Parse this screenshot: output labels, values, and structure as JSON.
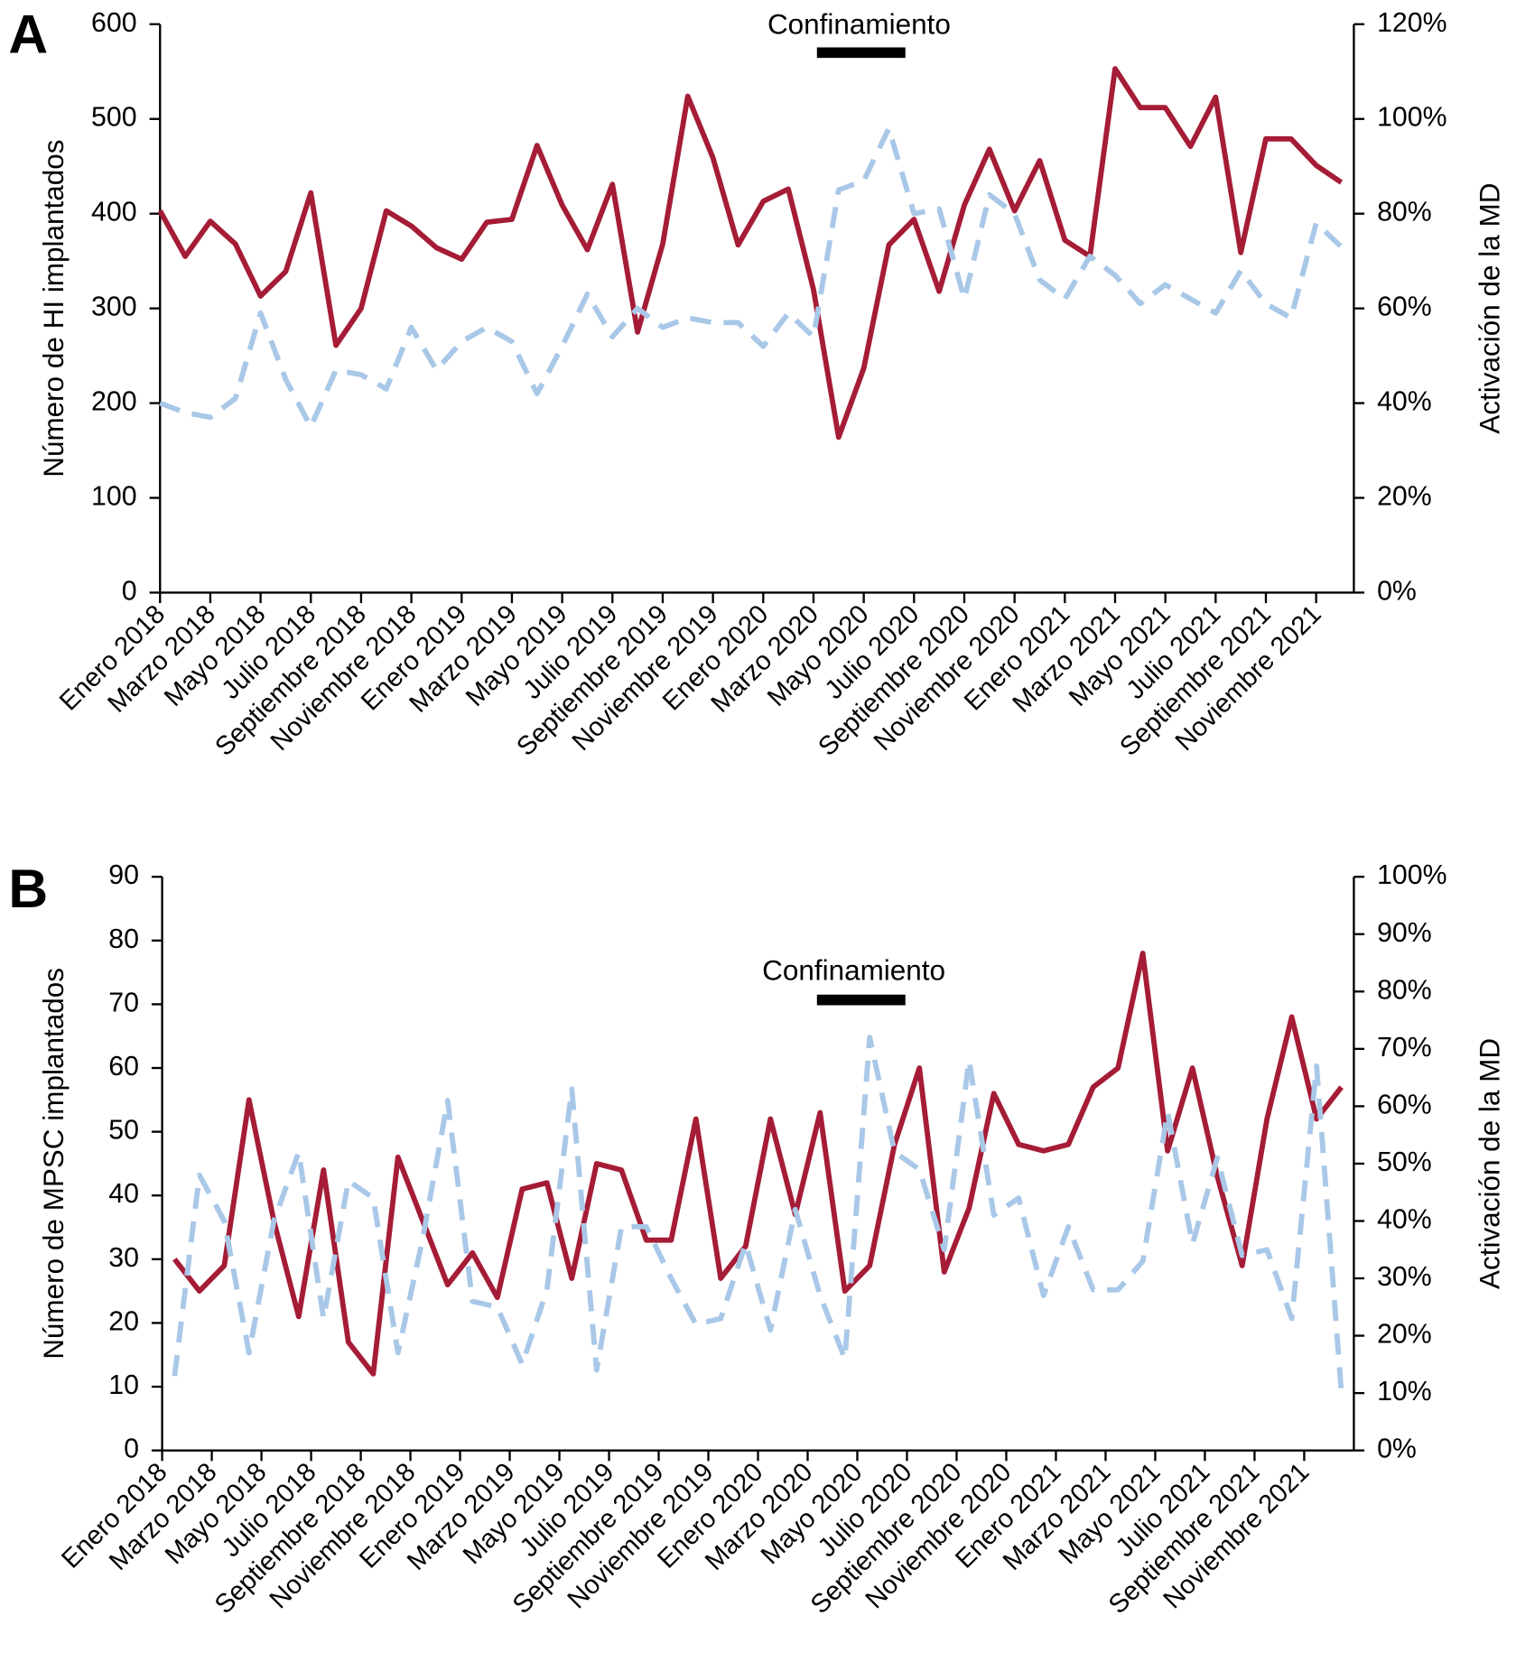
{
  "chart_data": [
    {
      "type": "line",
      "panel_label": "A",
      "annotation": "Confinamiento",
      "ylabel": "Número de HI implantados",
      "y2label": "Activación de la MD",
      "categories": [
        "Enero 2018",
        null,
        "Marzo 2018",
        null,
        "Mayo 2018",
        null,
        "Julio 2018",
        null,
        "Septiembre 2018",
        null,
        "Noviembre 2018",
        null,
        "Enero 2019",
        null,
        "Marzo 2019",
        null,
        "Mayo 2019",
        null,
        "Julio 2019",
        null,
        "Septiembre 2019",
        null,
        "Noviembre 2019",
        null,
        "Enero 2020",
        null,
        "Marzo 2020",
        null,
        "Mayo 2020",
        null,
        "Julio 2020",
        null,
        "Septiembre 2020",
        null,
        "Noviembre 2020",
        null,
        "Enero 2021",
        null,
        "Marzo 2021",
        null,
        "Mayo 2021",
        null,
        "Julio 2021",
        null,
        "Septiembre 2021",
        null,
        "Noviembre 2021",
        null
      ],
      "series": [
        {
          "color": "#a51c36",
          "dashed": false,
          "axis": "y",
          "values": [
            403,
            355,
            392,
            368,
            313,
            339,
            422,
            261,
            300,
            403,
            387,
            364,
            352,
            391,
            394,
            472,
            409,
            362,
            431,
            275,
            368,
            524,
            459,
            367,
            413,
            426,
            320,
            164,
            237,
            367,
            394,
            318,
            409,
            468,
            403,
            456,
            372,
            355,
            553,
            512,
            512,
            471,
            523,
            359,
            479,
            479,
            451,
            433
          ]
        },
        {
          "color": "#a9c8e8",
          "dashed": true,
          "axis": "y2",
          "values": [
            40,
            38,
            37,
            41,
            59,
            45,
            35,
            47,
            46,
            43,
            56,
            47,
            53,
            56,
            53,
            42,
            52,
            63,
            54,
            60,
            56,
            58,
            57,
            57,
            52,
            59,
            54,
            85,
            87,
            98,
            80,
            81,
            62,
            84,
            80,
            66,
            62,
            71,
            67,
            61,
            65,
            62,
            59,
            68,
            61,
            58,
            78,
            73
          ]
        }
      ],
      "ylim": [
        0,
        600
      ],
      "yticks": [
        0,
        100,
        200,
        300,
        400,
        500,
        600
      ],
      "y2lim": [
        0,
        120
      ],
      "y2ticks": [
        {
          "value": 0,
          "label": "0%"
        },
        {
          "value": 20,
          "label": "20%"
        },
        {
          "value": 40,
          "label": "40%"
        },
        {
          "value": 60,
          "label": "60%"
        },
        {
          "value": 80,
          "label": "80%"
        },
        {
          "value": 100,
          "label": "100%"
        },
        {
          "value": 120,
          "label": "120%"
        }
      ]
    },
    {
      "type": "line",
      "panel_label": "B",
      "annotation": "Confinamiento",
      "ylabel": "Número de MPSC implantados",
      "y2label": "Activación de la MD",
      "categories": [
        "Enero 2018",
        null,
        "Marzo 2018",
        null,
        "Mayo 2018",
        null,
        "Julio 2018",
        null,
        "Septiembre 2018",
        null,
        "Noviembre 2018",
        null,
        "Enero 2019",
        null,
        "Marzo 2019",
        null,
        "Mayo 2019",
        null,
        "Julio 2019",
        null,
        "Septiembre 2019",
        null,
        "Noviembre 2019",
        null,
        "Enero 2020",
        null,
        "Marzo 2020",
        null,
        "Mayo 2020",
        null,
        "Julio 2020",
        null,
        "Septiembre 2020",
        null,
        "Noviembre 2020",
        null,
        "Enero 2021",
        null,
        "Marzo 2021",
        null,
        "Mayo 2021",
        null,
        "Julio 2021",
        null,
        "Septiembre 2021",
        null,
        "Noviembre 2021",
        null
      ],
      "series": [
        {
          "color": "#a51c36",
          "dashed": false,
          "axis": "y",
          "values": [
            30,
            25,
            29,
            55,
            36,
            21,
            44,
            17,
            12,
            46,
            36,
            26,
            31,
            24,
            41,
            42,
            27,
            45,
            44,
            33,
            33,
            52,
            27,
            32,
            52,
            37,
            53,
            25,
            29,
            48,
            60,
            28,
            38,
            56,
            48,
            47,
            48,
            57,
            60,
            78,
            47,
            60,
            43,
            29,
            52,
            68,
            52,
            57
          ]
        },
        {
          "color": "#a9c8e8",
          "dashed": true,
          "axis": "y2",
          "values": [
            13,
            48,
            40,
            17,
            40,
            52,
            23,
            47,
            44,
            17,
            37,
            61,
            26,
            25,
            15,
            28,
            63,
            14,
            39,
            39,
            30,
            22,
            23,
            36,
            21,
            42,
            27,
            16,
            72,
            52,
            49,
            35,
            68,
            41,
            44,
            27,
            39,
            28,
            28,
            33,
            59,
            36,
            51,
            34,
            35,
            23,
            67,
            10
          ]
        }
      ],
      "ylim": [
        0,
        90
      ],
      "yticks": [
        0,
        10,
        20,
        30,
        40,
        50,
        60,
        70,
        80,
        90
      ],
      "y2lim": [
        0,
        100
      ],
      "y2ticks": [
        {
          "value": 0,
          "label": "0%"
        },
        {
          "value": 10,
          "label": "10%"
        },
        {
          "value": 20,
          "label": "20%"
        },
        {
          "value": 30,
          "label": "30%"
        },
        {
          "value": 40,
          "label": "40%"
        },
        {
          "value": 50,
          "label": "50%"
        },
        {
          "value": 60,
          "label": "60%"
        },
        {
          "value": 70,
          "label": "70%"
        },
        {
          "value": 80,
          "label": "80%"
        },
        {
          "value": 90,
          "label": "90%"
        },
        {
          "value": 100,
          "label": "100%"
        }
      ]
    }
  ]
}
